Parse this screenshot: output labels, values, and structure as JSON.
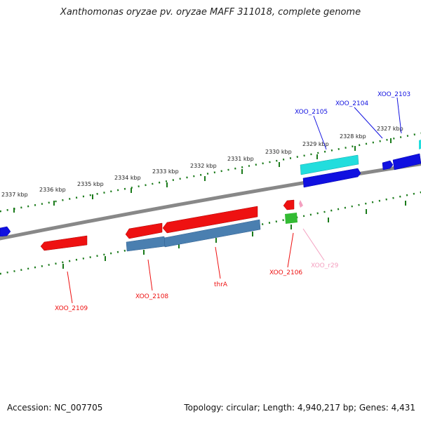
{
  "title": "Xanthomonas oryzae pv. oryzae MAFF 311018, complete genome",
  "footer": {
    "accession": "Accession: NC_007705",
    "topology": "Topology: circular; Length: 4,940,217 bp; Genes: 4,431"
  },
  "ticks": [
    "2327 kbp",
    "2328 kbp",
    "2329 kbp",
    "2330 kbp",
    "2331 kbp",
    "2332 kbp",
    "2333 kbp",
    "2334 kbp",
    "2335 kbp",
    "2336 kbp",
    "2337 kbp"
  ],
  "genes_top": [
    "XOO_2103",
    "XOO_2104",
    "XOO_2105"
  ],
  "genes_bottom": [
    "XOO_2106",
    "XOO_r29",
    "thrA",
    "XOO_2108",
    "XOO_2109"
  ],
  "colors": {
    "forward": "#1010e0",
    "forward_cyan": "#22dddd",
    "reverse": "#ee1111",
    "steelblue": "#4a7fb0",
    "rna": "#f4a0c0",
    "green": "#33bb33",
    "tick": "#1a7a1a",
    "backbone": "#888888"
  }
}
